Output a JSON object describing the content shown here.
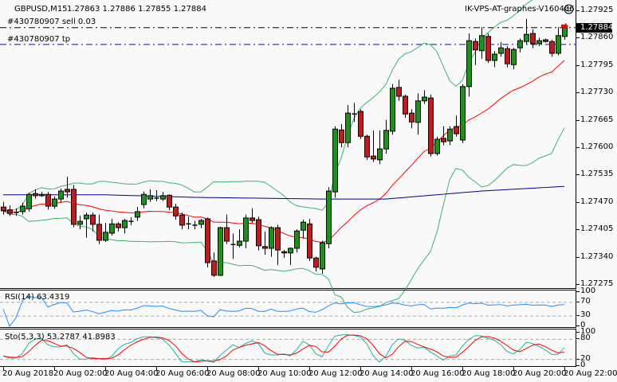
{
  "header": {
    "symbol_tf": "GBPUSD,M15",
    "ohlc": "1.27863 1.27886 1.27855 1.27884",
    "expert_name": "IK-VPS-AT-graphes-V160406",
    "expert_icon": "smiley-icon"
  },
  "orders": {
    "sell_label": "#430780907 sell 0.03",
    "sell_price": 1.27884,
    "tp_label": "#430780907 tp",
    "tp_price": 1.27844
  },
  "colors": {
    "bull": "#228b22",
    "bear": "#b22222",
    "bands": "#3cb371",
    "middle": "#ff0000",
    "slow_ma": "#00008b",
    "rsi": "#1e90ff",
    "sto_main": "#20b2aa",
    "sto_signal": "#ff0000",
    "tp_line": "#0000ff"
  },
  "price_axis": {
    "ticks": [
      "1.27925",
      "1.27860",
      "1.27795",
      "1.27730",
      "1.27665",
      "1.27600",
      "1.27535",
      "1.27470",
      "1.27405",
      "1.27340",
      "1.27275"
    ],
    "current": "1.27884"
  },
  "rsi": {
    "label": "RSI(14) 63.4319",
    "scale": [
      "100",
      "70",
      "30",
      "0"
    ],
    "levels": [
      70,
      30
    ]
  },
  "stochastic": {
    "label": "Sto(5,3,3) 53.2787 41.8983",
    "scale": [
      "100",
      "80",
      "20",
      "0"
    ],
    "levels": [
      80,
      20
    ]
  },
  "time_axis": [
    "20 Aug 2018",
    "20 Aug 02:00",
    "20 Aug 04:00",
    "20 Aug 06:00",
    "20 Aug 08:00",
    "20 Aug 10:00",
    "20 Aug 12:00",
    "20 Aug 14:00",
    "20 Aug 16:00",
    "20 Aug 18:00",
    "20 Aug 20:00",
    "20 Aug 22:00"
  ],
  "chart_data": {
    "type": "candlestick",
    "symbol": "GBPUSD",
    "timeframe": "M15",
    "ylim": [
      1.27275,
      1.27925
    ],
    "candles_ohlc": [
      [
        1.27458,
        1.2747,
        1.2744,
        1.27449
      ],
      [
        1.27451,
        1.27462,
        1.27437,
        1.27443
      ],
      [
        1.27445,
        1.27455,
        1.27437,
        1.27445
      ],
      [
        1.27447,
        1.27468,
        1.2744,
        1.2746
      ],
      [
        1.27454,
        1.27492,
        1.27447,
        1.27488
      ],
      [
        1.2749,
        1.275,
        1.27478,
        1.27485
      ],
      [
        1.27485,
        1.27494,
        1.27482,
        1.27488
      ],
      [
        1.27488,
        1.27494,
        1.27452,
        1.2746
      ],
      [
        1.2746,
        1.27483,
        1.27454,
        1.27477
      ],
      [
        1.27477,
        1.27502,
        1.2747,
        1.27496
      ],
      [
        1.275,
        1.2753,
        1.2748,
        1.27494
      ],
      [
        1.275,
        1.2751,
        1.2741,
        1.27417
      ],
      [
        1.27417,
        1.27437,
        1.27405,
        1.27424
      ],
      [
        1.2743,
        1.27445,
        1.27385,
        1.27439
      ],
      [
        1.27439,
        1.27445,
        1.274,
        1.27417
      ],
      [
        1.27417,
        1.2744,
        1.2737,
        1.27379
      ],
      [
        1.27379,
        1.2742,
        1.27375,
        1.27398
      ],
      [
        1.27396,
        1.2743,
        1.2739,
        1.27418
      ],
      [
        1.27418,
        1.27422,
        1.274,
        1.27409
      ],
      [
        1.27409,
        1.2743,
        1.27395,
        1.27426
      ],
      [
        1.27424,
        1.27434,
        1.27415,
        1.27424
      ],
      [
        1.27434,
        1.27458,
        1.27425,
        1.27447
      ],
      [
        1.27464,
        1.27495,
        1.27455,
        1.27488
      ],
      [
        1.27477,
        1.275,
        1.2747,
        1.27485
      ],
      [
        1.27479,
        1.27498,
        1.27472,
        1.27479
      ],
      [
        1.27477,
        1.27494,
        1.27472,
        1.27485
      ],
      [
        1.27486,
        1.27488,
        1.2745,
        1.27458
      ],
      [
        1.27458,
        1.27466,
        1.27428,
        1.27437
      ],
      [
        1.27439,
        1.27445,
        1.27405,
        1.27415
      ],
      [
        1.27418,
        1.27435,
        1.27405,
        1.27418
      ],
      [
        1.27415,
        1.27425,
        1.27405,
        1.27415
      ],
      [
        1.27417,
        1.2743,
        1.27408,
        1.27426
      ],
      [
        1.2743,
        1.27433,
        1.27315,
        1.27326
      ],
      [
        1.2733,
        1.2735,
        1.27292,
        1.27296
      ],
      [
        1.27296,
        1.27411,
        1.27294,
        1.27409
      ],
      [
        1.27409,
        1.2744,
        1.2737,
        1.27377
      ],
      [
        1.27369,
        1.27395,
        1.27335,
        1.27369
      ],
      [
        1.27367,
        1.27405,
        1.27362,
        1.27377
      ],
      [
        1.27377,
        1.2744,
        1.2736,
        1.27432
      ],
      [
        1.27432,
        1.27455,
        1.2742,
        1.27426
      ],
      [
        1.27428,
        1.27435,
        1.27355,
        1.27366
      ],
      [
        1.27364,
        1.274,
        1.27345,
        1.2736
      ],
      [
        1.2736,
        1.27412,
        1.2734,
        1.27409
      ],
      [
        1.27409,
        1.27416,
        1.2732,
        1.27356
      ],
      [
        1.27352,
        1.27356,
        1.27337,
        1.27349
      ],
      [
        1.27349,
        1.27362,
        1.2732,
        1.2736
      ],
      [
        1.2736,
        1.27405,
        1.2735,
        1.27401
      ],
      [
        1.27403,
        1.27428,
        1.27383,
        1.27422
      ],
      [
        1.27418,
        1.2743,
        1.2733,
        1.27337
      ],
      [
        1.27337,
        1.2734,
        1.27305,
        1.27315
      ],
      [
        1.27311,
        1.27378,
        1.273,
        1.27373
      ],
      [
        1.27371,
        1.27505,
        1.2736,
        1.27496
      ],
      [
        1.27494,
        1.2765,
        1.2748,
        1.27643
      ],
      [
        1.27641,
        1.27655,
        1.276,
        1.27611
      ],
      [
        1.27611,
        1.277,
        1.276,
        1.27681
      ],
      [
        1.27679,
        1.27705,
        1.2766,
        1.27679
      ],
      [
        1.27685,
        1.2769,
        1.2762,
        1.27626
      ],
      [
        1.27626,
        1.2763,
        1.2757,
        1.27577
      ],
      [
        1.27579,
        1.2764,
        1.27565,
        1.27572
      ],
      [
        1.2757,
        1.2764,
        1.2756,
        1.27596
      ],
      [
        1.27596,
        1.27665,
        1.27585,
        1.2764
      ],
      [
        1.27638,
        1.2775,
        1.2763,
        1.2774
      ],
      [
        1.27742,
        1.2776,
        1.2771,
        1.27721
      ],
      [
        1.27721,
        1.27725,
        1.2767,
        1.27679
      ],
      [
        1.27681,
        1.2769,
        1.27645,
        1.2766
      ],
      [
        1.27659,
        1.27728,
        1.2763,
        1.2771
      ],
      [
        1.2771,
        1.27735,
        1.27703,
        1.27719
      ],
      [
        1.27717,
        1.27725,
        1.27578,
        1.27585
      ],
      [
        1.27585,
        1.27625,
        1.2758,
        1.27619
      ],
      [
        1.27621,
        1.2765,
        1.27605,
        1.27613
      ],
      [
        1.27615,
        1.2765,
        1.27605,
        1.27643
      ],
      [
        1.27649,
        1.27675,
        1.27625,
        1.27632
      ],
      [
        1.27617,
        1.2775,
        1.2761,
        1.27744
      ],
      [
        1.27744,
        1.2787,
        1.2772,
        1.27853
      ],
      [
        1.27851,
        1.27858,
        1.27795,
        1.27831
      ],
      [
        1.27829,
        1.27885,
        1.2781,
        1.27865
      ],
      [
        1.27863,
        1.2787,
        1.278,
        1.27806
      ],
      [
        1.27806,
        1.27828,
        1.2779,
        1.27821
      ],
      [
        1.27823,
        1.2785,
        1.27815,
        1.27836
      ],
      [
        1.27834,
        1.2784,
        1.2779,
        1.27798
      ],
      [
        1.27796,
        1.27836,
        1.27785,
        1.27832
      ],
      [
        1.27836,
        1.27858,
        1.27825,
        1.27853
      ],
      [
        1.27851,
        1.27905,
        1.27845,
        1.27868
      ],
      [
        1.2787,
        1.2788,
        1.27835,
        1.27846
      ],
      [
        1.27846,
        1.2786,
        1.2784,
        1.27853
      ],
      [
        1.27855,
        1.27858,
        1.27848,
        1.27851
      ],
      [
        1.27851,
        1.27855,
        1.27815,
        1.27823
      ],
      [
        1.27823,
        1.27885,
        1.27818,
        1.27865
      ],
      [
        1.27863,
        1.27886,
        1.27855,
        1.27884
      ]
    ],
    "bollinger": {
      "period": 20,
      "deviation": 2
    },
    "slow_ma_points": [
      [
        0,
        1.27487
      ],
      [
        16,
        1.27487
      ],
      [
        30,
        1.27481
      ],
      [
        50,
        1.27477
      ],
      [
        60,
        1.27477
      ],
      [
        75,
        1.27496
      ],
      [
        88,
        1.27507
      ]
    ],
    "rsi_period": 14,
    "stochastic_params": [
      5,
      3,
      3
    ]
  }
}
